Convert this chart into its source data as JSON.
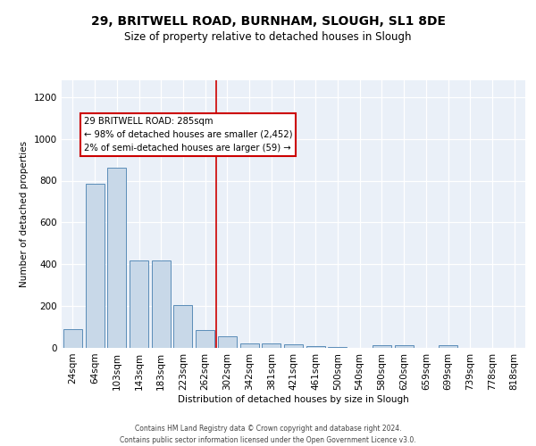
{
  "title1": "29, BRITWELL ROAD, BURNHAM, SLOUGH, SL1 8DE",
  "title2": "Size of property relative to detached houses in Slough",
  "xlabel": "Distribution of detached houses by size in Slough",
  "ylabel": "Number of detached properties",
  "bins": [
    "24sqm",
    "64sqm",
    "103sqm",
    "143sqm",
    "183sqm",
    "223sqm",
    "262sqm",
    "302sqm",
    "342sqm",
    "381sqm",
    "421sqm",
    "461sqm",
    "500sqm",
    "540sqm",
    "580sqm",
    "620sqm",
    "659sqm",
    "699sqm",
    "739sqm",
    "778sqm",
    "818sqm"
  ],
  "values": [
    90,
    785,
    860,
    420,
    420,
    205,
    85,
    55,
    20,
    20,
    15,
    10,
    5,
    0,
    12,
    12,
    0,
    12,
    0,
    0,
    0
  ],
  "bar_color": "#c8d8e8",
  "bar_edge_color": "#5b8db8",
  "vline_x_index": 7,
  "vline_color": "#cc0000",
  "annotation_title": "29 BRITWELL ROAD: 285sqm",
  "annotation_line1": "← 98% of detached houses are smaller (2,452)",
  "annotation_line2": "2% of semi-detached houses are larger (59) →",
  "annotation_box_color": "#ffffff",
  "annotation_border_color": "#cc0000",
  "footer1": "Contains HM Land Registry data © Crown copyright and database right 2024.",
  "footer2": "Contains public sector information licensed under the Open Government Licence v3.0.",
  "ylim": [
    0,
    1280
  ],
  "bg_color": "#eaf0f8",
  "grid_color": "#ffffff"
}
